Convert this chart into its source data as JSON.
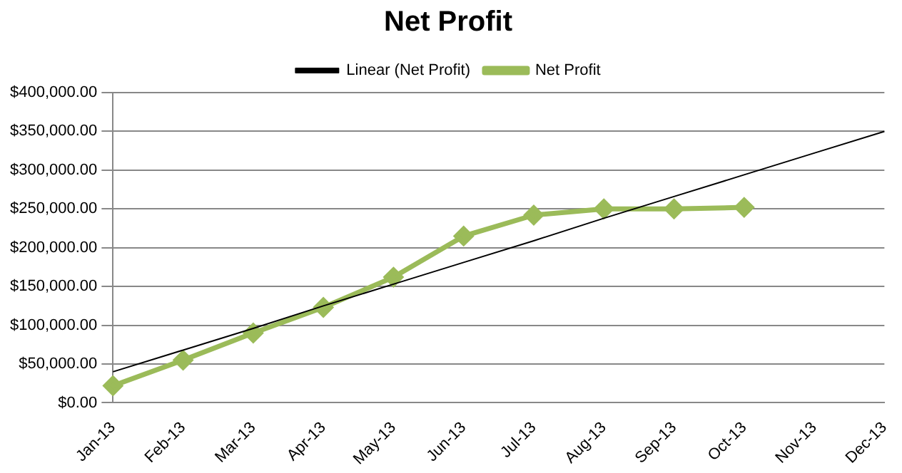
{
  "chart_data": {
    "type": "line",
    "title": "Net Profit",
    "categories": [
      "Jan-13",
      "Feb-13",
      "Mar-13",
      "Apr-13",
      "May-13",
      "Jun-13",
      "Jul-13",
      "Aug-13",
      "Sep-13",
      "Oct-13",
      "Nov-13",
      "Dec-13"
    ],
    "series": [
      {
        "name": "Net Profit",
        "color": "#9bbb59",
        "marker": "diamond",
        "values": [
          22000,
          55000,
          90000,
          123000,
          162000,
          215000,
          242000,
          250000,
          250000,
          252000,
          null,
          null
        ]
      },
      {
        "name": "Linear (Net Profit)",
        "color": "#000000",
        "marker": "none",
        "values": [
          40000,
          68000,
          96000,
          125000,
          153000,
          181000,
          209000,
          238000,
          266000,
          294000,
          322000,
          350000
        ]
      }
    ],
    "ylim": [
      0,
      400000
    ],
    "yticks": [
      {
        "value": 0,
        "label": "$0.00"
      },
      {
        "value": 50000,
        "label": "$50,000.00"
      },
      {
        "value": 100000,
        "label": "$100,000.00"
      },
      {
        "value": 150000,
        "label": "$150,000.00"
      },
      {
        "value": 200000,
        "label": "$200,000.00"
      },
      {
        "value": 250000,
        "label": "$250,000.00"
      },
      {
        "value": 300000,
        "label": "$300,000.00"
      },
      {
        "value": 350000,
        "label": "$350,000.00"
      },
      {
        "value": 400000,
        "label": "$400,000.00"
      }
    ],
    "grid": "y",
    "legend": "top"
  }
}
